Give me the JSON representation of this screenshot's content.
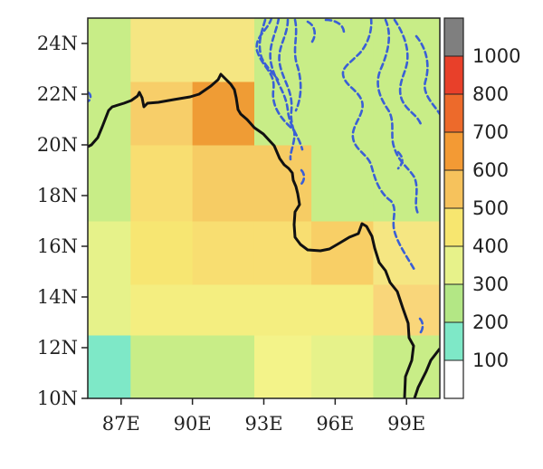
{
  "map": {
    "x_ticks": [
      "87E",
      "90E",
      "93E",
      "96E",
      "99E"
    ],
    "y_ticks": [
      "24N",
      "22N",
      "20N",
      "18N",
      "16N",
      "14N",
      "12N",
      "10N"
    ],
    "x_tick_values": [
      87,
      90,
      93,
      96,
      99
    ],
    "y_tick_values": [
      24,
      22,
      20,
      18,
      16,
      14,
      12,
      10
    ],
    "lon_range": [
      85.6,
      100.4
    ],
    "lat_range": [
      10,
      25
    ],
    "colorbar": {
      "labels": [
        "1000",
        "800",
        "700",
        "600",
        "500",
        "400",
        "300",
        "200",
        "100"
      ],
      "colors": [
        "#7f7f7f",
        "#e8402a",
        "#ed6a2b",
        "#f39a34",
        "#f6c25c",
        "#f7e66f",
        "#e7f28a",
        "#b3e785",
        "#7ee8c7",
        "#ffffff"
      ]
    },
    "grid": {
      "lon_edges": [
        85.6,
        87.4,
        90.0,
        92.6,
        95.0,
        97.6,
        100.4
      ],
      "lat_edges": [
        10.0,
        12.5,
        14.5,
        17.0,
        20.0,
        22.5,
        25.0
      ],
      "cells": [
        [
          "#7ee8c7",
          "#c8ed87",
          "#c8ed87",
          "#f3f389",
          "#e6f28a",
          "#c8ed87"
        ],
        [
          "#e6f28a",
          "#f4ee80",
          "#f4ee80",
          "#f4ee80",
          "#f4ee80",
          "#f9d67a"
        ],
        [
          "#e6f28a",
          "#f7e672",
          "#f8de71",
          "#f8de71",
          "#f8cf66",
          "#f5e682"
        ],
        [
          "#c8ed87",
          "#f8de71",
          "#f6cc64",
          "#f6cc64",
          "#c8ed87",
          "#c8ed87"
        ],
        [
          "#c8ed87",
          "#f7ce69",
          "#ef9c35",
          "#c8ed87",
          "#c8ed87",
          "#c8ed87"
        ],
        [
          "#c8ed87",
          "#f5e682",
          "#f5e682",
          "#c8ed87",
          "#c8ed87",
          "#c8ed87"
        ]
      ]
    }
  }
}
